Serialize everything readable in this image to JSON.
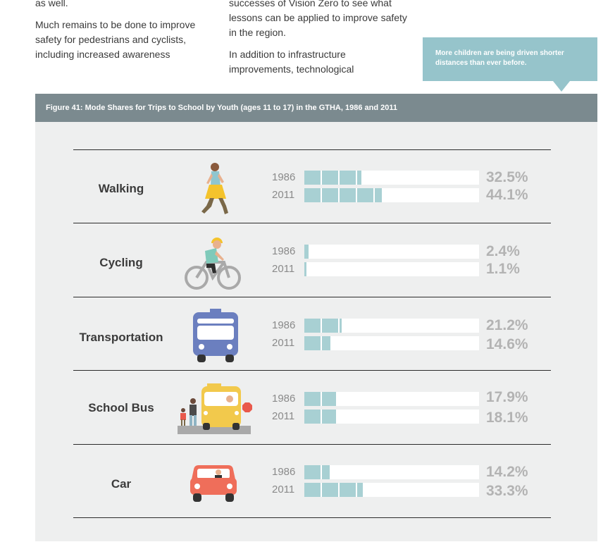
{
  "text": {
    "col1": [
      "as well.",
      "Much remains to be done to improve safety for pedestrians and cyclists, including increased awareness"
    ],
    "col2_first": "successes of Vision Zero to see what lessons can be applied to improve safety in the region.",
    "col2_second": "In addition to infrastructure improvements, technological"
  },
  "callout": "More children are being driven shorter distances than ever before.",
  "figure_title": "Figure 41: Mode Shares for Trips to School by Youth (ages 11 to 17) in the GTHA, 1986 and 2011",
  "colors": {
    "bar_fill": "#a8d0d3",
    "header_bg": "#7b8a8f",
    "callout_bg": "#96c4cb",
    "percent_text": "#b3b3b3"
  },
  "chart_data": {
    "type": "bar",
    "title": "Figure 41: Mode Shares for Trips to School by Youth (ages 11 to 17) in the GTHA, 1986 and 2011",
    "categories": [
      "Walking",
      "Cycling",
      "Transportation",
      "School Bus",
      "Car"
    ],
    "series": [
      {
        "name": "1986",
        "values": [
          32.5,
          2.4,
          21.2,
          17.9,
          14.2
        ],
        "labels": [
          "32.5%",
          "2.4%",
          "21.2%",
          "17.9%",
          "14.2%"
        ]
      },
      {
        "name": "2011",
        "values": [
          44.1,
          1.1,
          14.6,
          18.1,
          33.3
        ],
        "labels": [
          "44.1%",
          "1.1%",
          "14.6%",
          "18.1%",
          "33.3%"
        ]
      }
    ],
    "icons": [
      "walking-person-icon",
      "cyclist-icon",
      "transit-bus-icon",
      "school-bus-icon",
      "car-icon"
    ],
    "ylim": [
      0,
      100
    ]
  }
}
